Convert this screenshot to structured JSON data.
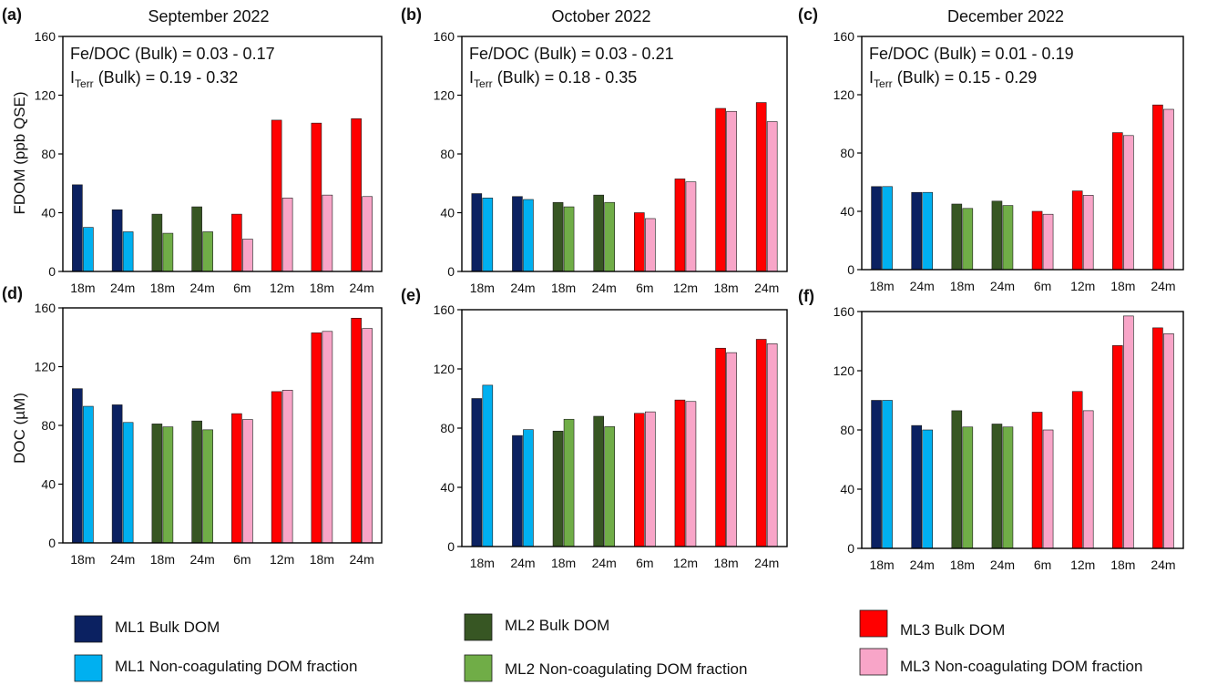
{
  "colors": {
    "ML1_bulk": "#0b2161",
    "ML1_noncoag": "#00b0f0",
    "ML2_bulk": "#375623",
    "ML2_noncoag": "#70ad47",
    "ML3_bulk": "#ff0000",
    "ML3_noncoag": "#f8a5c8"
  },
  "legend": [
    {
      "key": "ML1_bulk",
      "label": "ML1 Bulk DOM"
    },
    {
      "key": "ML1_noncoag",
      "label": "ML1 Non-coagulating DOM fraction"
    },
    {
      "key": "ML2_bulk",
      "label": "ML2 Bulk DOM"
    },
    {
      "key": "ML2_noncoag",
      "label": "ML2 Non-coagulating DOM fraction"
    },
    {
      "key": "ML3_bulk",
      "label": "ML3 Bulk DOM"
    },
    {
      "key": "ML3_noncoag",
      "label": "ML3  Non-coagulating DOM fraction"
    }
  ],
  "chart_data": [
    {
      "panel": "(a)",
      "title": "September 2022",
      "type": "bar",
      "ylabel": "FDOM (ppb QSE)",
      "ylim": [
        0,
        160
      ],
      "yticks": [
        0,
        40,
        80,
        120,
        160
      ],
      "categories": [
        "18m",
        "24m",
        "18m",
        "24m",
        "6m",
        "12m",
        "18m",
        "24m"
      ],
      "groups": [
        "ML1",
        "ML1",
        "ML2",
        "ML2",
        "ML3",
        "ML3",
        "ML3",
        "ML3"
      ],
      "series": [
        {
          "name": "Bulk DOM",
          "values": [
            59,
            42,
            39,
            44,
            39,
            103,
            101,
            104
          ]
        },
        {
          "name": "Non-coagulating DOM fraction",
          "values": [
            30,
            27,
            26,
            27,
            22,
            50,
            52,
            51
          ]
        }
      ],
      "annotations": [
        {
          "main": "Fe/DOC (Bulk) = 0.03 - 0.17"
        },
        {
          "main": "I",
          "sub": "Terr",
          "rest": " (Bulk) = 0.19 - 0.32"
        }
      ]
    },
    {
      "panel": "(b)",
      "title": "October 2022",
      "type": "bar",
      "ylabel": "",
      "ylim": [
        0,
        160
      ],
      "yticks": [
        0,
        40,
        80,
        120,
        160
      ],
      "categories": [
        "18m",
        "24m",
        "18m",
        "24m",
        "6m",
        "12m",
        "18m",
        "24m"
      ],
      "groups": [
        "ML1",
        "ML1",
        "ML2",
        "ML2",
        "ML3",
        "ML3",
        "ML3",
        "ML3"
      ],
      "series": [
        {
          "name": "Bulk DOM",
          "values": [
            53,
            51,
            47,
            52,
            40,
            63,
            111,
            115
          ]
        },
        {
          "name": "Non-coagulating DOM fraction",
          "values": [
            50,
            49,
            44,
            47,
            36,
            61,
            109,
            102
          ]
        }
      ],
      "annotations": [
        {
          "main": "Fe/DOC (Bulk) = 0.03 - 0.21"
        },
        {
          "main": "I",
          "sub": "Terr",
          "rest": " (Bulk) = 0.18 - 0.35"
        }
      ]
    },
    {
      "panel": "(c)",
      "title": "December 2022",
      "type": "bar",
      "ylabel": "",
      "ylim": [
        0,
        160
      ],
      "yticks": [
        0,
        40,
        80,
        120,
        160
      ],
      "categories": [
        "18m",
        "24m",
        "18m",
        "24m",
        "6m",
        "12m",
        "18m",
        "24m"
      ],
      "groups": [
        "ML1",
        "ML1",
        "ML2",
        "ML2",
        "ML3",
        "ML3",
        "ML3",
        "ML3"
      ],
      "series": [
        {
          "name": "Bulk DOM",
          "values": [
            57,
            53,
            45,
            47,
            40,
            54,
            94,
            113
          ]
        },
        {
          "name": "Non-coagulating DOM fraction",
          "values": [
            57,
            53,
            42,
            44,
            38,
            51,
            92,
            110
          ]
        }
      ],
      "annotations": [
        {
          "main": "Fe/DOC (Bulk) = 0.01 - 0.19"
        },
        {
          "main": "I",
          "sub": "Terr",
          "rest": " (Bulk) = 0.15 - 0.29"
        }
      ]
    },
    {
      "panel": "(d)",
      "title": "",
      "type": "bar",
      "ylabel": "DOC (µM)",
      "ylim": [
        0,
        160
      ],
      "yticks": [
        0,
        40,
        80,
        120,
        160
      ],
      "categories": [
        "18m",
        "24m",
        "18m",
        "24m",
        "6m",
        "12m",
        "18m",
        "24m"
      ],
      "groups": [
        "ML1",
        "ML1",
        "ML2",
        "ML2",
        "ML3",
        "ML3",
        "ML3",
        "ML3"
      ],
      "series": [
        {
          "name": "Bulk DOM",
          "values": [
            105,
            94,
            81,
            83,
            88,
            103,
            143,
            153
          ]
        },
        {
          "name": "Non-coagulating DOM fraction",
          "values": [
            93,
            82,
            79,
            77,
            84,
            104,
            144,
            146
          ]
        }
      ],
      "annotations": []
    },
    {
      "panel": "(e)",
      "title": "",
      "type": "bar",
      "ylabel": "",
      "ylim": [
        0,
        160
      ],
      "yticks": [
        0,
        40,
        80,
        120,
        160
      ],
      "categories": [
        "18m",
        "24m",
        "18m",
        "24m",
        "6m",
        "12m",
        "18m",
        "24m"
      ],
      "groups": [
        "ML1",
        "ML1",
        "ML2",
        "ML2",
        "ML3",
        "ML3",
        "ML3",
        "ML3"
      ],
      "series": [
        {
          "name": "Bulk DOM",
          "values": [
            100,
            75,
            78,
            88,
            90,
            99,
            134,
            140
          ]
        },
        {
          "name": "Non-coagulating DOM fraction",
          "values": [
            109,
            79,
            86,
            81,
            91,
            98,
            131,
            137
          ]
        }
      ],
      "annotations": []
    },
    {
      "panel": "(f)",
      "title": "",
      "type": "bar",
      "ylabel": "",
      "ylim": [
        0,
        160
      ],
      "yticks": [
        0,
        40,
        80,
        120,
        160
      ],
      "categories": [
        "18m",
        "24m",
        "18m",
        "24m",
        "6m",
        "12m",
        "18m",
        "24m"
      ],
      "groups": [
        "ML1",
        "ML1",
        "ML2",
        "ML2",
        "ML3",
        "ML3",
        "ML3",
        "ML3"
      ],
      "series": [
        {
          "name": "Bulk DOM",
          "values": [
            100,
            83,
            93,
            84,
            92,
            106,
            137,
            149
          ]
        },
        {
          "name": "Non-coagulating DOM fraction",
          "values": [
            100,
            80,
            82,
            82,
            80,
            93,
            157,
            145
          ]
        }
      ],
      "annotations": []
    }
  ]
}
